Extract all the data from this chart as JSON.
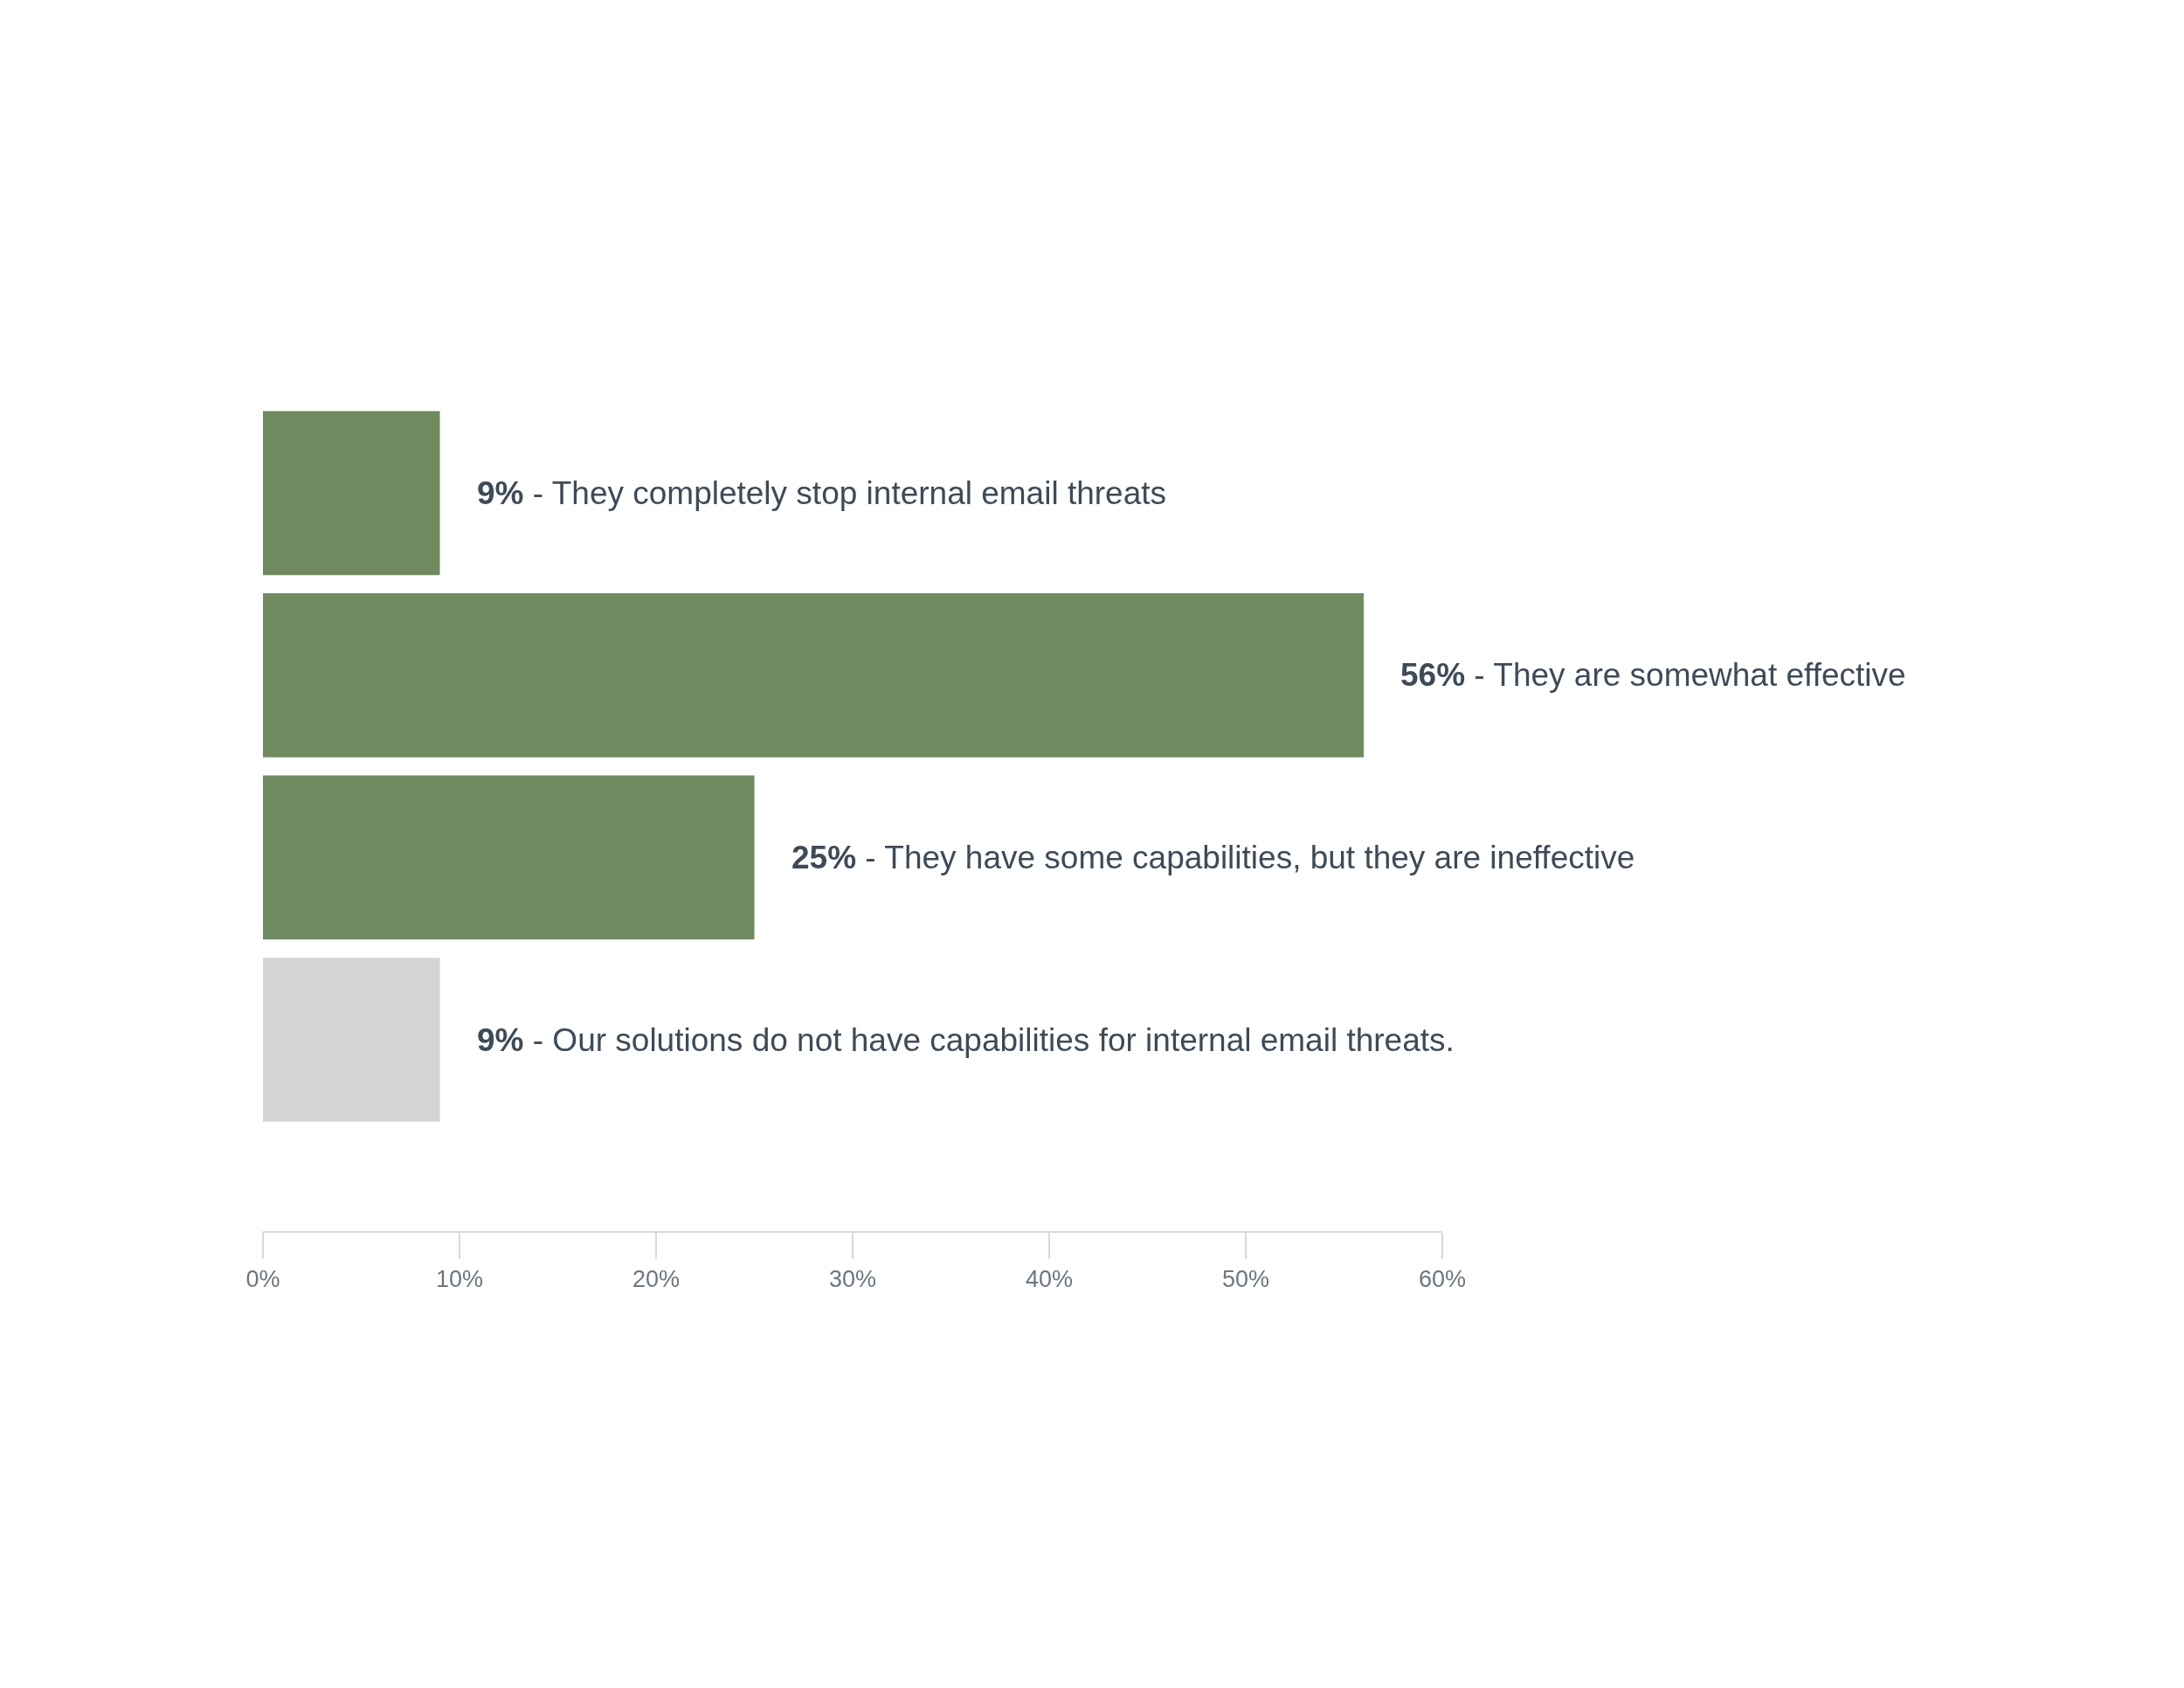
{
  "chart_data": {
    "type": "bar",
    "orientation": "horizontal",
    "categories": [
      null,
      null,
      null,
      null
    ],
    "values": [
      9,
      56,
      25,
      9
    ],
    "value_labels": [
      "9% - They completely stop internal email threats",
      "56% - They are somewhat effective",
      "25% - They have some capabilities, but they are ineffective",
      "9% - Our solutions do not have capabilities for internal email threats."
    ],
    "colors": [
      "#6f8a5e",
      "#6f8a5e",
      "#6f8a5e",
      "#d4d4d2"
    ],
    "xlim": [
      0,
      60
    ],
    "xticks": [
      {
        "value": 0,
        "label": "0%"
      },
      {
        "value": 10,
        "label": "10%"
      },
      {
        "value": 20,
        "label": "20%"
      },
      {
        "value": 30,
        "label": "30%"
      },
      {
        "value": 40,
        "label": "40%"
      },
      {
        "value": 50,
        "label": "50%"
      },
      {
        "value": 60,
        "label": "60%"
      }
    ],
    "legend": false,
    "tick_labels": "x"
  }
}
